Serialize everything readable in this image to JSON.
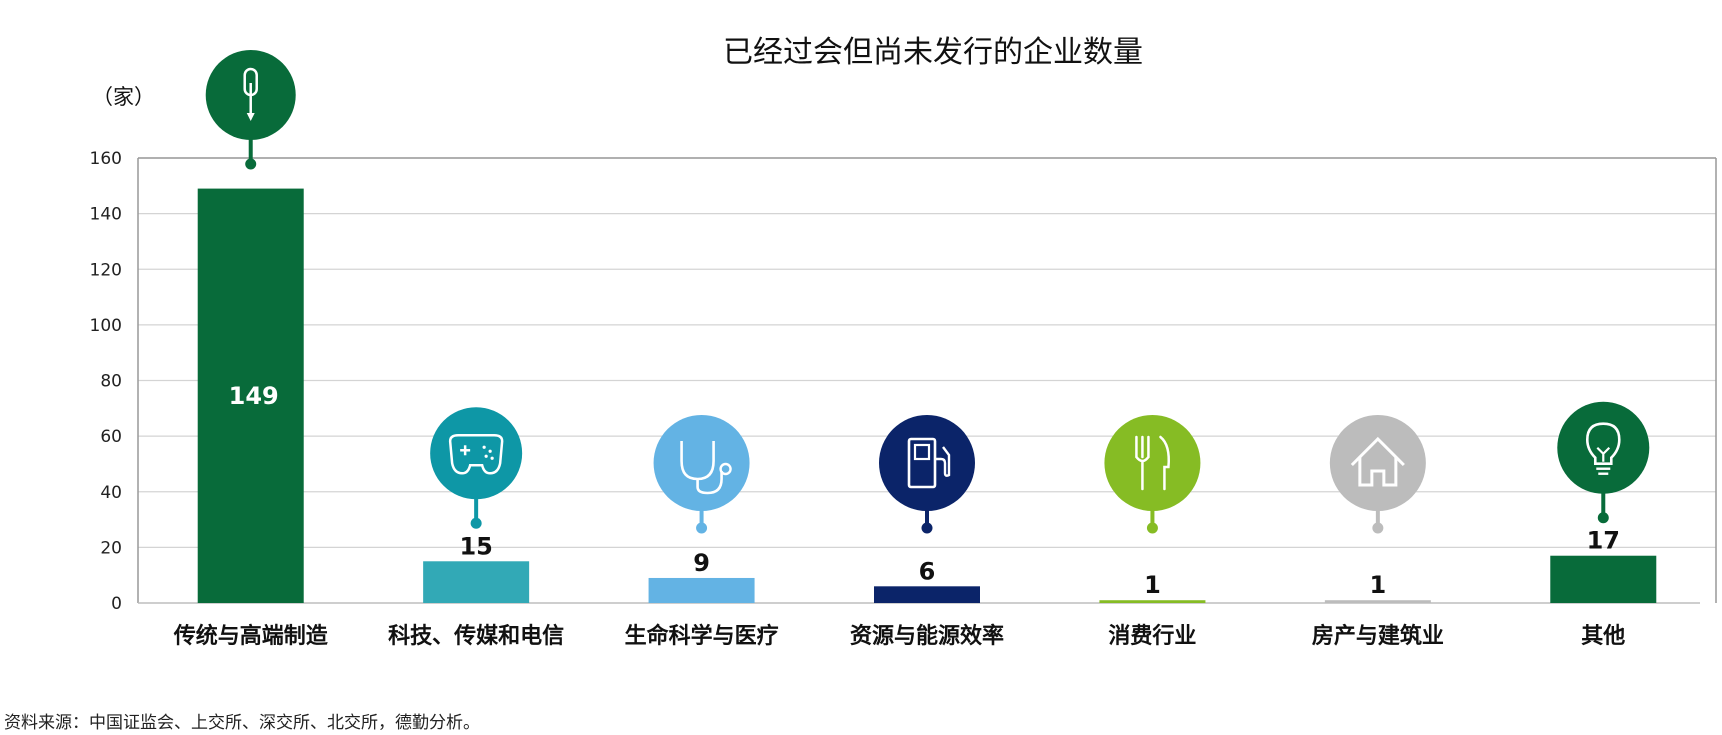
{
  "chart_data": {
    "type": "bar",
    "title": "已经过会但尚未发行的企业数量",
    "unit_label": "（家）",
    "categories": [
      "传统与高端制造",
      "科技、传媒和电信",
      "生命科学与医疗",
      "资源与能源效率",
      "消费行业",
      "房产与建筑业",
      "其他"
    ],
    "values": [
      149,
      15,
      9,
      6,
      1,
      1,
      17
    ],
    "value_labels": [
      "149",
      "15",
      "9",
      "6",
      "1",
      "1",
      "17"
    ],
    "colors": [
      "#086b3a",
      "#32a9b6",
      "#63b3e4",
      "#0b2469",
      "#86bc24",
      "#bcbcbc",
      "#086b3a"
    ],
    "icons": [
      "screwdriver-icon",
      "game-controller-icon",
      "stethoscope-icon",
      "fuel-pump-icon",
      "fork-knife-icon",
      "house-icon",
      "lightbulb-icon"
    ],
    "icon_colors": [
      "#086b3a",
      "#0e97a6",
      "#63b3e4",
      "#0b2469",
      "#86bc24",
      "#bcbcbc",
      "#086b3a"
    ],
    "ylim": [
      0,
      160
    ],
    "yticks": [
      "0",
      "20",
      "40",
      "60",
      "80",
      "100",
      "120",
      "140",
      "160"
    ],
    "grid": true
  },
  "source_note": "资料来源：中国证监会、上交所、深交所、北交所，德勤分析。"
}
